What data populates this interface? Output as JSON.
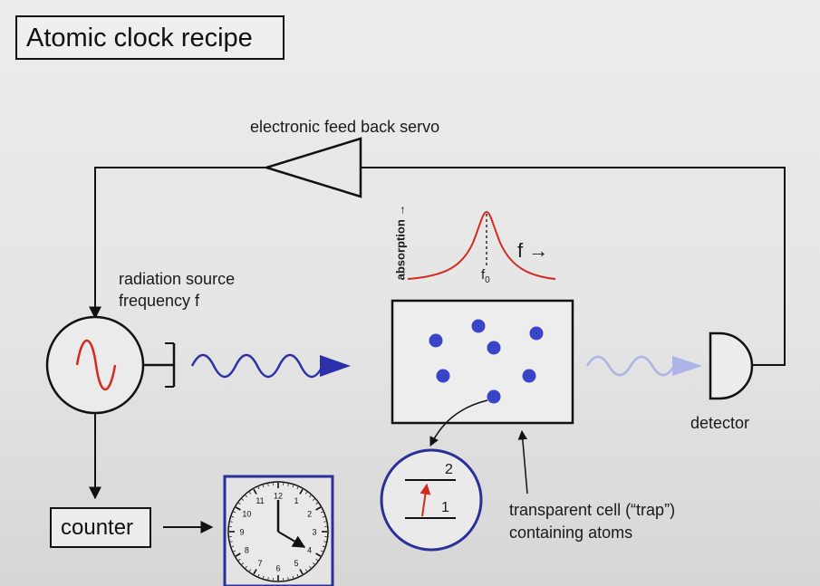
{
  "title": "Atomic clock recipe",
  "labels": {
    "servo": "electronic feed back servo",
    "radiation_line1": "radiation source",
    "radiation_line2": "frequency f",
    "detector": "detector",
    "counter": "counter",
    "cell_line1": "transparent cell (“trap”)",
    "cell_line2": "containing atoms"
  },
  "absorption_plot": {
    "ylabel": "absorption →",
    "xlabel": "f →",
    "peak_label": "f",
    "peak_subscript": "0"
  },
  "energy_levels": {
    "upper": "2",
    "lower": "1"
  },
  "clock": {
    "numbers": [
      "12",
      "1",
      "2",
      "3",
      "4",
      "5",
      "6",
      "7",
      "8",
      "9",
      "10",
      "11"
    ]
  },
  "colors": {
    "atom": "#3a44c8",
    "wave": "#2b2fa8",
    "wave_faded": "#aeb3e8",
    "sine": "#d42a1f",
    "lorentzian": "#d42a1f",
    "clock_frame": "#2a2f9a",
    "circle_energy": "#2a2f9a"
  }
}
